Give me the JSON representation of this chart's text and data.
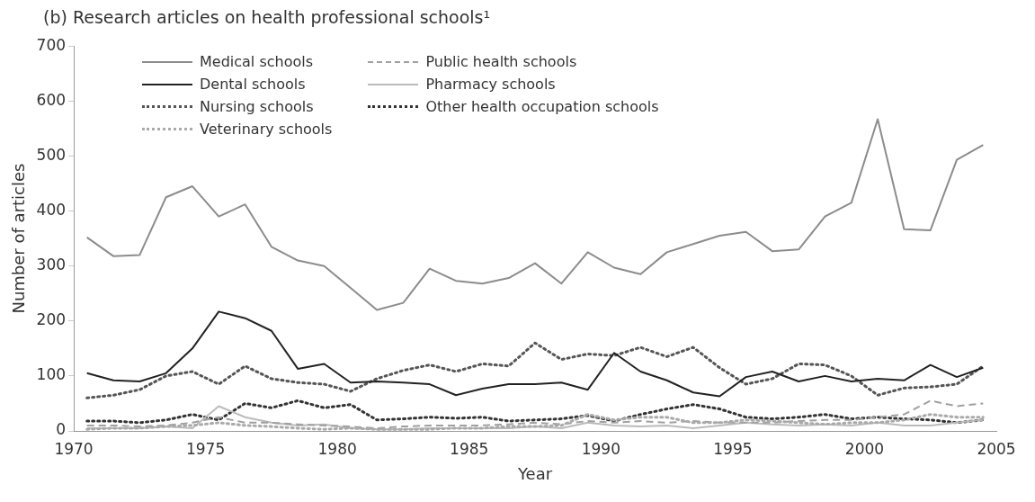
{
  "chart_data": {
    "type": "line",
    "title": "(b) Research articles on health professional schools¹",
    "xlabel": "Year",
    "ylabel": "Number of articles",
    "x": [
      1970.5,
      1971.5,
      1972.5,
      1973.5,
      1974.5,
      1975.5,
      1976.5,
      1977.5,
      1978.5,
      1979.5,
      1980.5,
      1981.5,
      1982.5,
      1983.5,
      1984.5,
      1985.5,
      1986.5,
      1987.5,
      1988.5,
      1989.5,
      1990.5,
      1991.5,
      1992.5,
      1993.5,
      1994.5,
      1995.5,
      1996.5,
      1997.5,
      1998.5,
      1999.5,
      2000.5,
      2001.5,
      2002.5,
      2003.5,
      2004.5
    ],
    "series": [
      {
        "name": "Medical schools",
        "color": "#8c8c8c",
        "line_style": "solid",
        "values": [
          352,
          318,
          320,
          425,
          445,
          390,
          412,
          335,
          310,
          300,
          260,
          220,
          233,
          295,
          273,
          268,
          278,
          305,
          268,
          325,
          297,
          285,
          325,
          340,
          355,
          362,
          327,
          330,
          390,
          415,
          567,
          367,
          365,
          493,
          520
        ]
      },
      {
        "name": "Dental schools",
        "color": "#222222",
        "line_style": "solid",
        "values": [
          105,
          92,
          90,
          105,
          150,
          217,
          205,
          182,
          113,
          122,
          88,
          90,
          88,
          85,
          65,
          77,
          85,
          85,
          88,
          75,
          142,
          108,
          92,
          70,
          63,
          98,
          108,
          90,
          100,
          90,
          95,
          92,
          120,
          98,
          115
        ]
      },
      {
        "name": "Nursing schools",
        "color": "#555555",
        "line_style": "dotted",
        "values": [
          60,
          65,
          75,
          100,
          108,
          85,
          118,
          95,
          88,
          85,
          72,
          95,
          110,
          120,
          108,
          122,
          118,
          160,
          130,
          140,
          137,
          152,
          135,
          152,
          115,
          85,
          95,
          122,
          120,
          100,
          65,
          78,
          80,
          85,
          118
        ]
      },
      {
        "name": "Veterinary schools",
        "color": "#aaaaaa",
        "line_style": "dotted",
        "values": [
          3,
          5,
          5,
          8,
          10,
          15,
          10,
          8,
          5,
          3,
          5,
          3,
          3,
          3,
          5,
          5,
          8,
          8,
          10,
          30,
          20,
          25,
          25,
          15,
          15,
          20,
          18,
          15,
          12,
          15,
          15,
          20,
          30,
          25,
          25
        ]
      },
      {
        "name": "Public health schools",
        "color": "#a0a0a0",
        "line_style": "dashed",
        "values": [
          10,
          10,
          8,
          10,
          15,
          25,
          15,
          15,
          12,
          10,
          8,
          5,
          8,
          10,
          10,
          10,
          12,
          15,
          12,
          18,
          15,
          18,
          15,
          18,
          15,
          15,
          15,
          18,
          20,
          20,
          25,
          30,
          55,
          45,
          50
        ]
      },
      {
        "name": "Pharmacy schools",
        "color": "#bbbbbb",
        "line_style": "solid",
        "values": [
          5,
          5,
          5,
          8,
          5,
          45,
          25,
          15,
          10,
          12,
          5,
          3,
          3,
          5,
          5,
          5,
          5,
          8,
          5,
          15,
          10,
          8,
          10,
          5,
          10,
          15,
          12,
          10,
          12,
          10,
          15,
          10,
          10,
          15,
          20
        ]
      },
      {
        "name": "Other health occupation schools",
        "color": "#333333",
        "line_style": "dotted",
        "values": [
          18,
          18,
          15,
          20,
          30,
          20,
          50,
          42,
          55,
          42,
          48,
          20,
          22,
          25,
          23,
          25,
          18,
          20,
          22,
          28,
          18,
          30,
          40,
          48,
          40,
          25,
          22,
          25,
          30,
          22,
          25,
          22,
          20,
          15,
          20
        ]
      }
    ],
    "xlim": [
      1970,
      2005
    ],
    "xticks": [
      1970,
      1975,
      1980,
      1985,
      1990,
      1995,
      2000,
      2005
    ],
    "ylim": [
      0,
      700
    ],
    "yticks": [
      0,
      100,
      200,
      300,
      400,
      500,
      600,
      700
    ],
    "grid": false,
    "legend": "top left"
  }
}
